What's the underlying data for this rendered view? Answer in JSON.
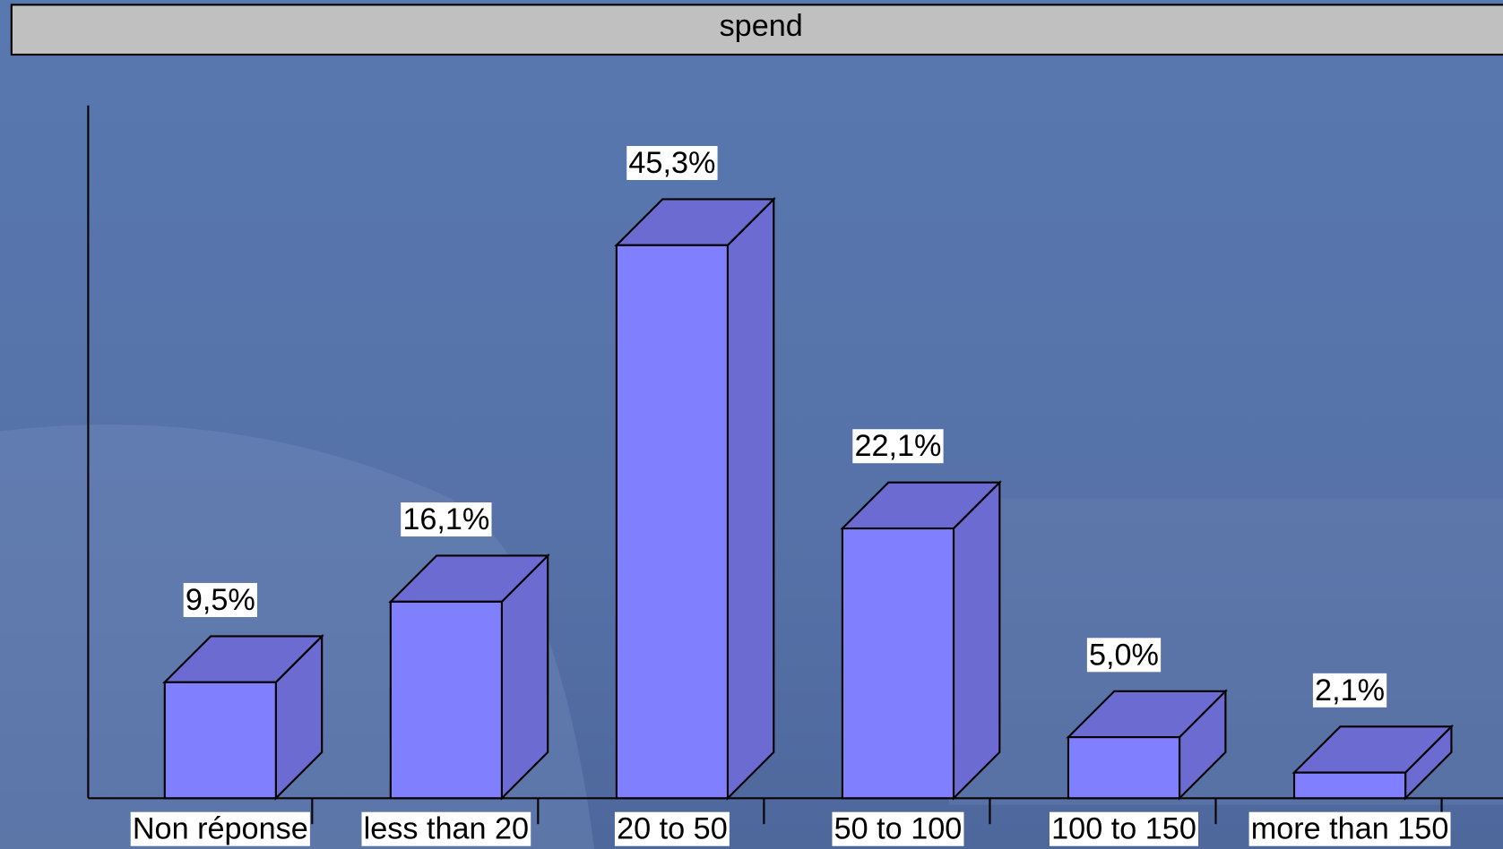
{
  "chart_data": {
    "type": "bar3d",
    "title": "spend",
    "categories": [
      "Non réponse",
      "less than 20",
      "20 to 50",
      "50 to 100",
      "100 to 150",
      "more than 150"
    ],
    "values": [
      9.5,
      16.1,
      45.3,
      22.1,
      5.0,
      2.1
    ],
    "value_labels": [
      "9,5%",
      "16,1%",
      "45,3%",
      "22,1%",
      "5,0%",
      "2,1%"
    ],
    "color": "#8080ff",
    "side_color": "#6b6bd2",
    "ylim": [
      0,
      56
    ]
  }
}
